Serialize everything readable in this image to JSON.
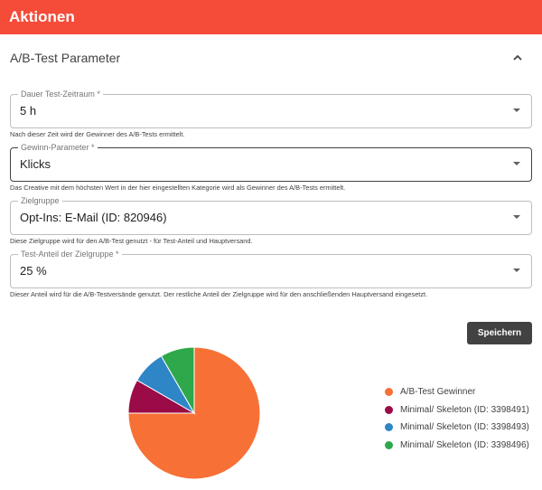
{
  "header": {
    "title": "Aktionen"
  },
  "section": {
    "title": "A/B-Test Parameter",
    "toggle_icon": "chevron-up-icon"
  },
  "fields": {
    "duration": {
      "label": "Dauer Test-Zeitraum *",
      "value": "5 h",
      "helper": "Nach dieser Zeit wird der Gewinner des A/B-Tests ermittelt."
    },
    "winner_param": {
      "label": "Gewinn-Parameter *",
      "value": "Klicks",
      "helper": "Das Creative mit dem höchsten Wert in der hier eingestellten Kategorie wird als Gewinner des A/B-Tests ermittelt."
    },
    "target_group": {
      "label": "Zielgruppe",
      "value": "Opt-Ins: E-Mail (ID: 820946)",
      "helper": "Diese Zielgruppe wird für den A/B-Test genutzt - für Test-Anteil und Hauptversand."
    },
    "test_share": {
      "label": "Test-Anteil der Zielgruppe *",
      "value": "25 %",
      "helper": "Dieser Anteil wird für die A/B-Testversände genutzt. Der restliche Anteil der Zielgruppe wird für den anschließenden Hauptversand eingesetzt."
    }
  },
  "actions": {
    "save_label": "Speichern"
  },
  "chart_data": {
    "type": "pie",
    "legend_position": "right",
    "slices": [
      {
        "label": "A/B-Test Gewinner",
        "value": 75,
        "color": "#f77036"
      },
      {
        "label": "Minimal/ Skeleton (ID: 3398491)",
        "value": 8.33,
        "color": "#9b0b47"
      },
      {
        "label": "Minimal/ Skeleton (ID: 3398493)",
        "value": 8.33,
        "color": "#2e86c6"
      },
      {
        "label": "Minimal/ Skeleton (ID: 3398496)",
        "value": 8.34,
        "color": "#2ea84a"
      }
    ]
  }
}
